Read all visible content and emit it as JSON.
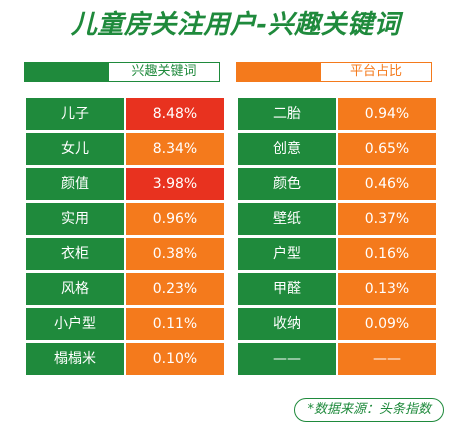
{
  "chart_data": {
    "type": "table",
    "title": "儿童房关注用户-兴趣关键词",
    "headers": {
      "left": "兴趣关键词",
      "right": "平台占比"
    },
    "left_table": [
      {
        "keyword": "儿子",
        "share": "8.48%",
        "highlight": true
      },
      {
        "keyword": "女儿",
        "share": "8.34%",
        "highlight": false
      },
      {
        "keyword": "颜值",
        "share": "3.98%",
        "highlight": true
      },
      {
        "keyword": "实用",
        "share": "0.96%",
        "highlight": false
      },
      {
        "keyword": "衣柜",
        "share": "0.38%",
        "highlight": false
      },
      {
        "keyword": "风格",
        "share": "0.23%",
        "highlight": false
      },
      {
        "keyword": "小户型",
        "share": "0.11%",
        "highlight": false
      },
      {
        "keyword": "榻榻米",
        "share": "0.10%",
        "highlight": false
      }
    ],
    "right_table": [
      {
        "keyword": "二胎",
        "share": "0.94%"
      },
      {
        "keyword": "创意",
        "share": "0.65%"
      },
      {
        "keyword": "颜色",
        "share": "0.46%"
      },
      {
        "keyword": "壁纸",
        "share": "0.37%"
      },
      {
        "keyword": "户型",
        "share": "0.16%"
      },
      {
        "keyword": "甲醛",
        "share": "0.13%"
      },
      {
        "keyword": "收纳",
        "share": "0.09%"
      },
      {
        "keyword": "——",
        "share": "——"
      }
    ],
    "source": "*数据来源：头条指数"
  },
  "colors": {
    "green": "#1f8a3c",
    "orange": "#f47a1c",
    "red": "#e8321f"
  }
}
